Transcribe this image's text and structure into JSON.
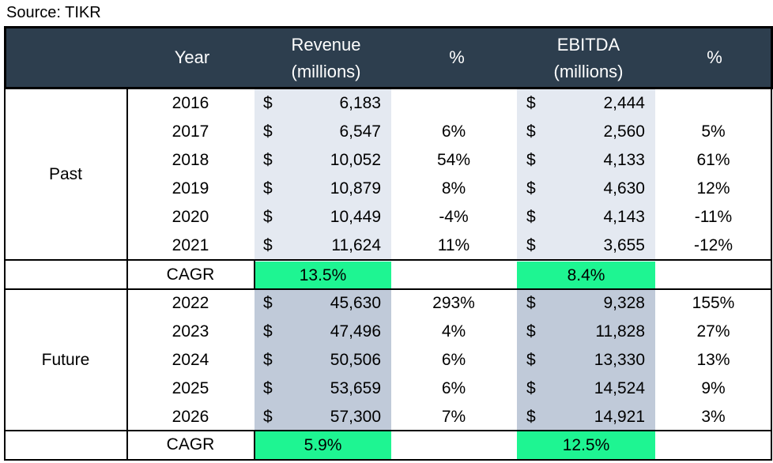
{
  "source": "Source: TIKR",
  "headers": {
    "year": "Year",
    "revenue": "Revenue\n(millions)",
    "rev_pct": "%",
    "ebitda": "EBITDA\n(millions)",
    "ebitda_pct": "%"
  },
  "currency_symbol": "$",
  "groups": {
    "past_label": "Past",
    "future_label": "Future"
  },
  "past_rows": [
    {
      "year": "2016",
      "revenue": "6,183",
      "rev_pct": "",
      "ebitda": "2,444",
      "ebitda_pct": ""
    },
    {
      "year": "2017",
      "revenue": "6,547",
      "rev_pct": "6%",
      "ebitda": "2,560",
      "ebitda_pct": "5%"
    },
    {
      "year": "2018",
      "revenue": "10,052",
      "rev_pct": "54%",
      "ebitda": "4,133",
      "ebitda_pct": "61%"
    },
    {
      "year": "2019",
      "revenue": "10,879",
      "rev_pct": "8%",
      "ebitda": "4,630",
      "ebitda_pct": "12%"
    },
    {
      "year": "2020",
      "revenue": "10,449",
      "rev_pct": "-4%",
      "ebitda": "4,143",
      "ebitda_pct": "-11%"
    },
    {
      "year": "2021",
      "revenue": "11,624",
      "rev_pct": "11%",
      "ebitda": "3,655",
      "ebitda_pct": "-12%"
    }
  ],
  "past_cagr": {
    "label": "CAGR",
    "revenue": "13.5%",
    "ebitda": "8.4%"
  },
  "future_rows": [
    {
      "year": "2022",
      "revenue": "45,630",
      "rev_pct": "293%",
      "ebitda": "9,328",
      "ebitda_pct": "155%"
    },
    {
      "year": "2023",
      "revenue": "47,496",
      "rev_pct": "4%",
      "ebitda": "11,828",
      "ebitda_pct": "27%"
    },
    {
      "year": "2024",
      "revenue": "50,506",
      "rev_pct": "6%",
      "ebitda": "13,330",
      "ebitda_pct": "13%"
    },
    {
      "year": "2025",
      "revenue": "53,659",
      "rev_pct": "6%",
      "ebitda": "14,524",
      "ebitda_pct": "9%"
    },
    {
      "year": "2026",
      "revenue": "57,300",
      "rev_pct": "7%",
      "ebitda": "14,921",
      "ebitda_pct": "3%"
    }
  ],
  "future_cagr": {
    "label": "CAGR",
    "revenue": "5.9%",
    "ebitda": "12.5%"
  },
  "colors": {
    "header_bg": "#2d3e4e",
    "past_band": "#e4e9f1",
    "future_band": "#c0cad9",
    "cagr_highlight": "#1ef592"
  }
}
